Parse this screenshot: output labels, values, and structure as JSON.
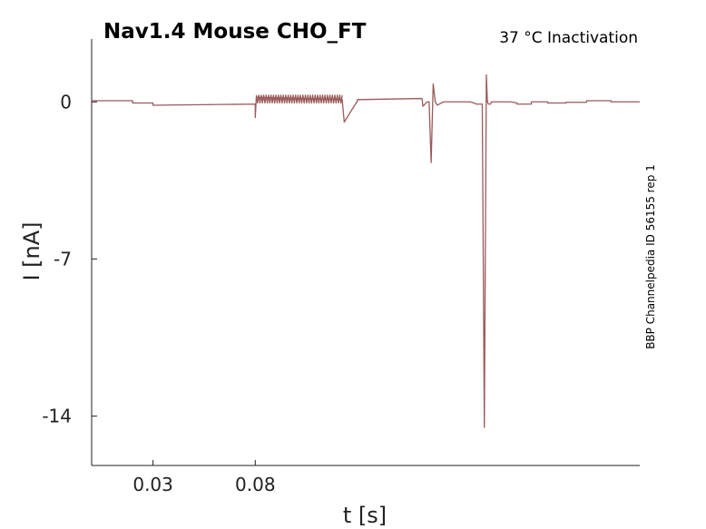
{
  "chart_data": {
    "type": "line",
    "title": "Nav1.4  Mouse  CHO_FT",
    "subtitle": "37 °C  Inactivation",
    "side_note": "BBP Channelpedia ID 56155 rep 1",
    "xlabel": "t [s]",
    "ylabel": "I [nA]",
    "xlim": [
      0.0,
      0.268
    ],
    "ylim": [
      -16.2,
      2.8
    ],
    "xticks": [
      {
        "value": 0.03,
        "label": "0.03"
      },
      {
        "value": 0.08,
        "label": "0.08"
      }
    ],
    "yticks": [
      {
        "value": 0,
        "label": "0"
      },
      {
        "value": -7,
        "label": "-7"
      },
      {
        "value": -14,
        "label": "-14"
      }
    ],
    "grid": false,
    "legend": "none",
    "series": [
      {
        "color": "#9a5a5a",
        "x": [
          0.0,
          0.02,
          0.02,
          0.03,
          0.03,
          0.08,
          0.08,
          0.0805,
          0.0815,
          0.1225,
          0.1235,
          0.13,
          0.13,
          0.1615,
          0.162,
          0.163,
          0.164,
          0.165,
          0.166,
          0.167,
          0.168,
          0.169,
          0.17,
          0.171,
          0.172,
          0.173,
          0.174,
          0.185,
          0.187,
          0.188,
          0.189,
          0.19,
          0.191,
          0.192,
          0.193,
          0.1935,
          0.194,
          0.1945,
          0.195,
          0.1955,
          0.196,
          0.1965,
          0.197,
          0.198,
          0.199,
          0.2,
          0.205,
          0.208,
          0.208,
          0.215,
          0.215,
          0.223,
          0.223,
          0.232,
          0.232,
          0.242,
          0.242,
          0.254,
          0.254,
          0.268
        ],
        "y": [
          0.05,
          0.05,
          -0.05,
          -0.05,
          -0.15,
          -0.1,
          -0.7,
          0.2,
          0.2,
          0.1,
          -0.9,
          0.05,
          0.1,
          0.15,
          -0.2,
          -0.1,
          0.0,
          0.0,
          -2.7,
          0.8,
          0.0,
          -0.15,
          -0.1,
          -0.05,
          0.0,
          0.0,
          0.0,
          0.0,
          -0.05,
          -0.1,
          -0.1,
          -0.1,
          -0.1,
          -14.5,
          1.2,
          0.0,
          -0.1,
          -0.1,
          -0.1,
          0.0,
          0.0,
          0.0,
          0.0,
          0.0,
          0.0,
          0.0,
          0.0,
          -0.05,
          -0.1,
          -0.1,
          0.0,
          0.0,
          -0.05,
          -0.05,
          -0.02,
          -0.02,
          0.05,
          0.05,
          0.0,
          0.0
        ]
      },
      {
        "color": "#9a5a5a",
        "x": [
          0.0805,
          0.0811,
          0.0817,
          0.0823,
          0.0829,
          0.0835,
          0.0841,
          0.0847,
          0.0853,
          0.0859,
          0.0865,
          0.0871,
          0.0877,
          0.0883,
          0.0889,
          0.0895,
          0.0901,
          0.0907,
          0.0913,
          0.0919,
          0.0925,
          0.0931,
          0.0937,
          0.0943,
          0.0949,
          0.0955,
          0.0961,
          0.0967,
          0.0973,
          0.0979,
          0.0985,
          0.0991,
          0.0997,
          0.1003,
          0.1009,
          0.1015,
          0.1021,
          0.1027,
          0.1033,
          0.1039,
          0.1045,
          0.1051,
          0.1057,
          0.1063,
          0.1069,
          0.1075,
          0.1081,
          0.1087,
          0.1093,
          0.1099,
          0.1105,
          0.1111,
          0.1117,
          0.1123,
          0.1129,
          0.1135,
          0.1141,
          0.1147,
          0.1153,
          0.1159,
          0.1165,
          0.1171,
          0.1177,
          0.1183,
          0.1189,
          0.1195,
          0.1201,
          0.1207,
          0.1213,
          0.1219,
          0.1225
        ],
        "y": [
          0.3,
          -0.05,
          0.3,
          -0.05,
          0.3,
          -0.05,
          0.3,
          -0.05,
          0.3,
          -0.05,
          0.3,
          -0.05,
          0.3,
          -0.05,
          0.3,
          -0.05,
          0.3,
          -0.05,
          0.3,
          -0.05,
          0.3,
          -0.05,
          0.3,
          -0.05,
          0.3,
          -0.05,
          0.3,
          -0.05,
          0.3,
          -0.05,
          0.3,
          -0.05,
          0.3,
          -0.05,
          0.3,
          -0.05,
          0.3,
          -0.05,
          0.3,
          -0.05,
          0.3,
          -0.05,
          0.3,
          -0.05,
          0.3,
          -0.05,
          0.3,
          -0.05,
          0.3,
          -0.05,
          0.3,
          -0.05,
          0.3,
          -0.05,
          0.3,
          -0.05,
          0.3,
          -0.05,
          0.3,
          -0.05,
          0.3,
          -0.05,
          0.3,
          -0.05,
          0.3,
          -0.05,
          0.3,
          -0.05,
          0.3,
          -0.05,
          0.3
        ]
      }
    ]
  }
}
